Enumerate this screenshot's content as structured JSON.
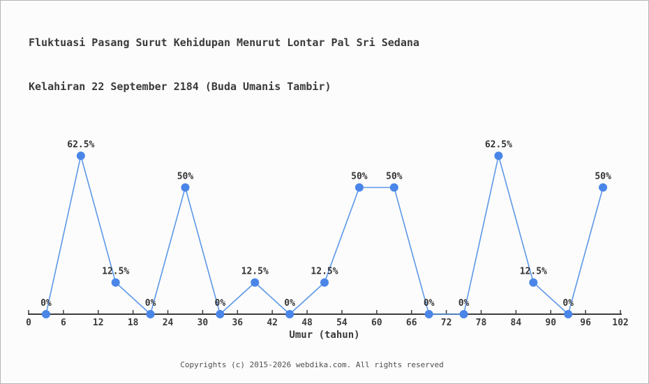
{
  "header": {
    "title_line1": "Fluktuasi Pasang Surut Kehidupan Menurut Lontar Pal Sri Sedana",
    "title_line2": "Kelahiran 22 September 2184 (Buda Umanis Tambir)"
  },
  "footer": {
    "text": "Copyrights (c) 2015-2026 webdika.com. All rights reserved"
  },
  "chart_data": {
    "type": "line",
    "title": "Fluktuasi Pasang Surut Kehidupan Menurut Lontar Pal Sri Sedana Kelahiran 22 September 2184 (Buda Umanis Tambir)",
    "x": [
      3,
      9,
      15,
      21,
      27,
      33,
      39,
      45,
      51,
      57,
      63,
      69,
      75,
      81,
      87,
      93,
      99
    ],
    "values": [
      0,
      62.5,
      12.5,
      0,
      50,
      0,
      12.5,
      0,
      12.5,
      50,
      50,
      0,
      0,
      62.5,
      12.5,
      0,
      50
    ],
    "point_labels": [
      "0%",
      "62.5%",
      "12.5%",
      "0%",
      "50%",
      "0%",
      "12.5%",
      "0%",
      "12.5%",
      "50%",
      "50%",
      "0%",
      "0%",
      "62.5%",
      "12.5%",
      "0%",
      "50%"
    ],
    "xlabel": "Umur (tahun)",
    "ylabel": "",
    "xlim": [
      0,
      102
    ],
    "ylim": [
      0,
      100
    ],
    "x_ticks": [
      0,
      6,
      12,
      18,
      24,
      30,
      36,
      42,
      48,
      54,
      60,
      66,
      72,
      78,
      84,
      90,
      96,
      102
    ],
    "grid": false,
    "legend": "none",
    "marker_radius": 6,
    "colors": {
      "line": "#5b97e8",
      "marker": "#4a86e8",
      "axis": "#3c3c3c",
      "tick_label": "#3c3c3c",
      "data_label": "#333333",
      "background": "#fcfcfc"
    }
  }
}
